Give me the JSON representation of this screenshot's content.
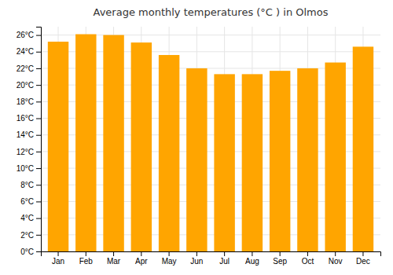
{
  "chart_data": {
    "type": "bar",
    "title": "Average monthly temperatures (°C ) in Olmos",
    "categories": [
      "Jan",
      "Feb",
      "Mar",
      "Apr",
      "May",
      "Jun",
      "Jul",
      "Aug",
      "Sep",
      "Oct",
      "Nov",
      "Dec"
    ],
    "values": [
      25.2,
      26.1,
      26.0,
      25.1,
      23.6,
      22.0,
      21.3,
      21.3,
      21.7,
      22.0,
      22.7,
      24.6
    ],
    "color": "#FFA500",
    "ylim": [
      0,
      27
    ],
    "yticks": [
      {
        "value": 0,
        "label": "0°C"
      },
      {
        "value": 2,
        "label": "2°C"
      },
      {
        "value": 4,
        "label": "4°C"
      },
      {
        "value": 6,
        "label": "6°C"
      },
      {
        "value": 8,
        "label": "8°C"
      },
      {
        "value": 10,
        "label": "10°C"
      },
      {
        "value": 12,
        "label": "12°C"
      },
      {
        "value": 14,
        "label": "14°C"
      },
      {
        "value": 16,
        "label": "16°C"
      },
      {
        "value": 18,
        "label": "18°C"
      },
      {
        "value": 20,
        "label": "20°C"
      },
      {
        "value": 22,
        "label": "22°C"
      },
      {
        "value": 24,
        "label": "24°C"
      },
      {
        "value": 26,
        "label": "26°C"
      }
    ],
    "grid": true
  }
}
